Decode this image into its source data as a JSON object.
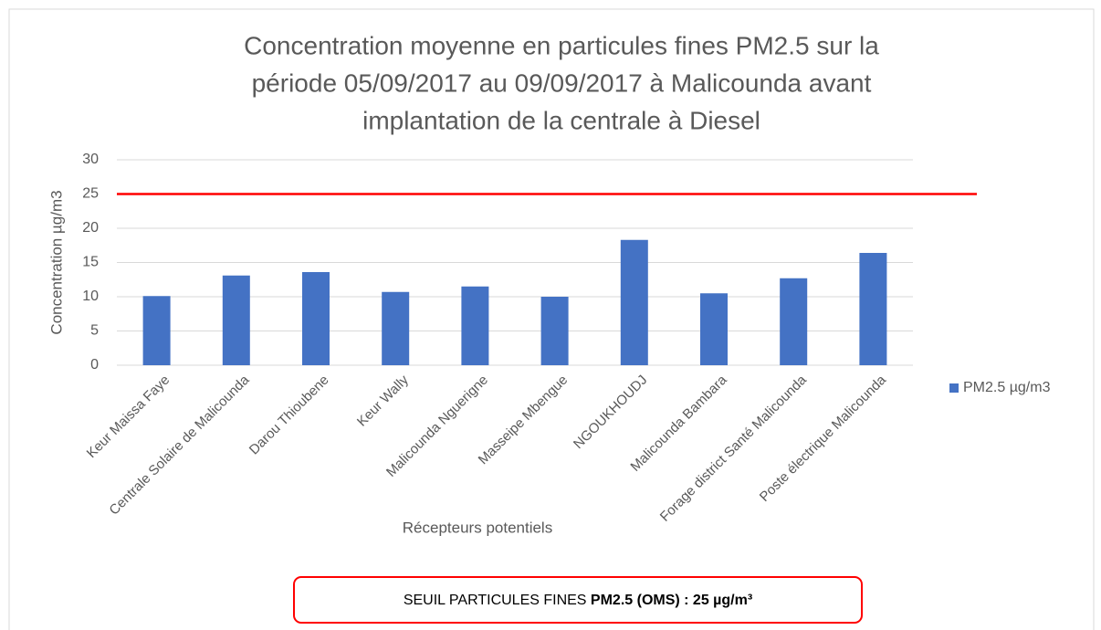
{
  "chart_data": {
    "type": "bar",
    "title": [
      "Concentration moyenne en particules fines PM2.5 sur la",
      "période 05/09/2017 au 09/09/2017 à Malicounda avant",
      "implantation de la centrale à Diesel"
    ],
    "x_label": "Récepteurs potentiels",
    "y_label": "Concentration µg/m3",
    "categories": [
      "Keur Maissa Faye",
      "Centrale Solaire de Malicounda",
      "Darou Thioubene",
      "Keur Wally",
      "Malicounda Nguerigne",
      "Masseipe Mbengue",
      "NGOUKHOUDJ",
      "Malicounda Bambara",
      "Forage district Santé Malicounda",
      "Poste électrique Malicounda"
    ],
    "series": [
      {
        "name": "PM2.5 µg/m3",
        "color": "#4472c4",
        "values": [
          10.1,
          13.1,
          13.6,
          10.7,
          11.5,
          10.0,
          18.3,
          10.5,
          12.7,
          16.4
        ]
      }
    ],
    "ylim": [
      0,
      30
    ],
    "yticks": [
      0,
      5,
      10,
      15,
      20,
      25,
      30
    ],
    "grid": true,
    "legend": "right",
    "threshold": {
      "value": 25,
      "color": "#ff0000"
    },
    "annotation": {
      "text": "SEUIL PARTICULES FINES ",
      "bold": "PM2.5 (OMS) : 25 µg/m³"
    }
  }
}
